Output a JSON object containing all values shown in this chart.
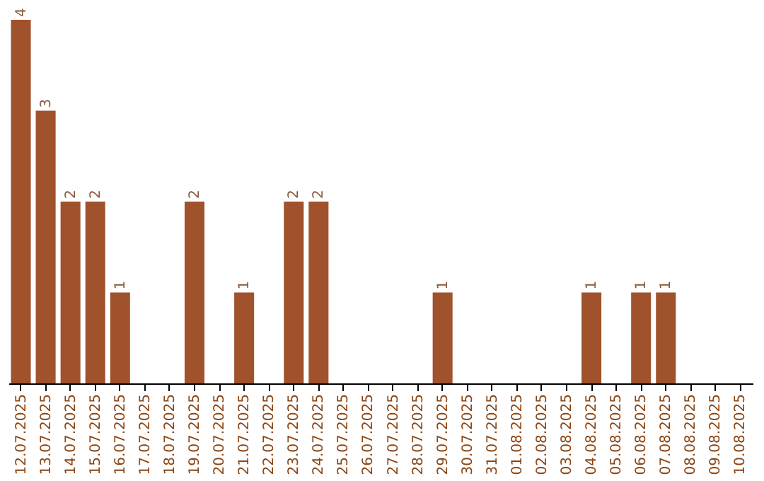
{
  "chart_data": {
    "type": "bar",
    "categories": [
      "12.07.2025",
      "13.07.2025",
      "14.07.2025",
      "15.07.2025",
      "16.07.2025",
      "17.07.2025",
      "18.07.2025",
      "19.07.2025",
      "20.07.2025",
      "21.07.2025",
      "22.07.2025",
      "23.07.2025",
      "24.07.2025",
      "25.07.2025",
      "26.07.2025",
      "27.07.2025",
      "28.07.2025",
      "29.07.2025",
      "30.07.2025",
      "31.07.2025",
      "01.08.2025",
      "02.08.2025",
      "03.08.2025",
      "04.08.2025",
      "05.08.2025",
      "06.08.2025",
      "07.08.2025",
      "08.08.2025",
      "09.08.2025",
      "10.08.2025"
    ],
    "values": [
      4,
      3,
      2,
      2,
      1,
      0,
      0,
      2,
      0,
      1,
      0,
      2,
      2,
      0,
      0,
      0,
      0,
      1,
      0,
      0,
      0,
      0,
      0,
      1,
      0,
      1,
      1,
      0,
      0,
      0
    ],
    "value_labels": [
      "4",
      "3",
      "2",
      "2",
      "1",
      null,
      null,
      "2",
      null,
      "1",
      null,
      "2",
      "2",
      null,
      null,
      null,
      null,
      "1",
      null,
      null,
      null,
      null,
      null,
      "1",
      null,
      "1",
      "1",
      null,
      null,
      null
    ],
    "color": "#a0522d",
    "grid": false
  }
}
